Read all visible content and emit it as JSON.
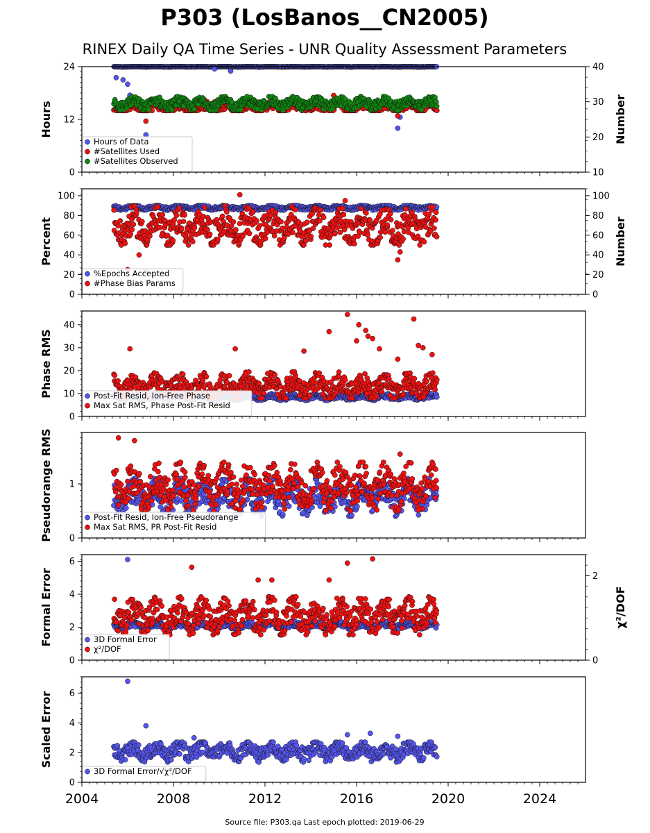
{
  "title": "P303 (LosBanos__CN2005)",
  "subtitle": "RINEX Daily QA Time Series - UNR Quality Assessment Parameters",
  "footer": "Source file: P303.qa Last epoch plotted: 2019-06-29",
  "colors": {
    "blue": "#5555ee",
    "red": "#ee1111",
    "green": "#118811",
    "navy": "#1a1a6e"
  },
  "chart_data": [
    {
      "id": "hours",
      "type": "scatter",
      "ylabel": "Hours",
      "ylabel_right": "Number",
      "xlim": [
        2004,
        2026
      ],
      "ylim": [
        0,
        24
      ],
      "yticks": [
        "0",
        "12",
        "24"
      ],
      "ylim_right": [
        10,
        40
      ],
      "yticks_right": [
        "10",
        "20",
        "30",
        "40"
      ],
      "legend_position": "lower-left",
      "legend": [
        "Hours of Data",
        "#Satellites Used",
        "#Satellites Observed"
      ],
      "x_range": [
        2005.4,
        2019.5
      ],
      "series": [
        {
          "name": "Hours of Data",
          "color": "blue",
          "axis": "left",
          "typical": 24.0,
          "band": [
            23.8,
            24.0
          ],
          "outliers": [
            [
              2005.5,
              21.5
            ],
            [
              2005.8,
              21.0
            ],
            [
              2006.0,
              20.0
            ],
            [
              2006.1,
              17.5
            ],
            [
              2006.3,
              15.0
            ],
            [
              2006.8,
              8.5
            ],
            [
              2009.8,
              23.5
            ],
            [
              2010.5,
              23.0
            ],
            [
              2017.8,
              10.0
            ],
            [
              2017.9,
              12.5
            ]
          ]
        },
        {
          "name": "#Satellites Used",
          "color": "red",
          "axis": "right",
          "typical": 28.5,
          "band": [
            27.5,
            31.5
          ],
          "outliers": [
            [
              2006.8,
              24.5
            ],
            [
              2009.8,
              30.0
            ],
            [
              2015.0,
              31.8
            ],
            [
              2017.8,
              26.0
            ],
            [
              2017.9,
              28.0
            ]
          ]
        },
        {
          "name": "#Satellites Observed",
          "color": "green",
          "axis": "right",
          "typical": 29.5,
          "band": [
            27.5,
            31.5
          ],
          "outliers": [
            [
              2017.8,
              27.5
            ]
          ]
        }
      ]
    },
    {
      "id": "percent",
      "type": "scatter",
      "ylabel": "Percent",
      "ylabel_right": "Number",
      "xlim": [
        2004,
        2026
      ],
      "ylim": [
        0,
        107
      ],
      "yticks": [
        "0",
        "20",
        "40",
        "60",
        "80",
        "100"
      ],
      "ylim_right": [
        0,
        107
      ],
      "yticks_right": [
        "0",
        "20",
        "40",
        "60",
        "80",
        "100"
      ],
      "legend_position": "lower-left",
      "legend": [
        "%Epochs Accepted",
        "#Phase Bias Params"
      ],
      "x_range": [
        2005.4,
        2019.5
      ],
      "series": [
        {
          "name": "%Epochs Accepted",
          "color": "blue",
          "axis": "left",
          "typical": 88,
          "band": [
            85,
            90
          ],
          "outliers": []
        },
        {
          "name": "#Phase Bias Params",
          "color": "red",
          "axis": "right",
          "typical": 68,
          "band": [
            50,
            90
          ],
          "outliers": [
            [
              2006.0,
              25
            ],
            [
              2006.8,
              23
            ],
            [
              2006.5,
              40
            ],
            [
              2010.9,
              101
            ],
            [
              2015.5,
              95
            ],
            [
              2017.8,
              35
            ],
            [
              2017.9,
              43
            ]
          ]
        }
      ]
    },
    {
      "id": "phase_rms",
      "type": "scatter",
      "ylabel": "Phase RMS",
      "xlim": [
        2004,
        2026
      ],
      "ylim": [
        0,
        46
      ],
      "yticks": [
        "0",
        "10",
        "20",
        "30",
        "40"
      ],
      "legend_position": "lower-left",
      "legend": [
        "Post-Fit Resid, Ion-Free Phase",
        "Max Sat RMS, Phase Post-Fit Resid"
      ],
      "x_range": [
        2005.4,
        2019.5
      ],
      "series": [
        {
          "name": "Post-Fit Resid, Ion-Free Phase",
          "color": "blue",
          "axis": "left",
          "typical": 8.5,
          "band": [
            7,
            10
          ],
          "outliers": []
        },
        {
          "name": "Max Sat RMS, Phase Post-Fit Resid",
          "color": "red",
          "axis": "left",
          "typical": 13,
          "band": [
            8,
            20
          ],
          "outliers": [
            [
              2006.1,
              29.5
            ],
            [
              2010.7,
              29.5
            ],
            [
              2013.7,
              28.5
            ],
            [
              2014.8,
              37
            ],
            [
              2015.6,
              44.5
            ],
            [
              2016.0,
              33
            ],
            [
              2016.1,
              40
            ],
            [
              2016.4,
              37.5
            ],
            [
              2016.5,
              35
            ],
            [
              2016.7,
              34
            ],
            [
              2017.0,
              29.5
            ],
            [
              2017.8,
              25
            ],
            [
              2018.5,
              42.5
            ],
            [
              2018.7,
              31
            ],
            [
              2018.9,
              30
            ],
            [
              2019.3,
              27
            ]
          ]
        }
      ]
    },
    {
      "id": "pseudorange_rms",
      "type": "scatter",
      "ylabel": "Pseudorange RMS",
      "xlim": [
        2004,
        2026
      ],
      "ylim": [
        0,
        1.95
      ],
      "yticks": [
        "0",
        "1"
      ],
      "legend_position": "lower-left",
      "legend": [
        "Post-Fit Resid, Ion-Free Pseudorange",
        "Max Sat RMS, PR Post-Fit Resid"
      ],
      "x_range": [
        2005.4,
        2019.5
      ],
      "series": [
        {
          "name": "Post-Fit Resid, Ion-Free Pseudorange",
          "color": "blue",
          "axis": "left",
          "typical": 0.75,
          "band": [
            0.4,
            1.1
          ],
          "outliers": []
        },
        {
          "name": "Max Sat RMS, PR Post-Fit Resid",
          "color": "red",
          "axis": "left",
          "typical": 0.95,
          "band": [
            0.5,
            1.4
          ],
          "outliers": [
            [
              2005.6,
              1.85
            ],
            [
              2006.3,
              1.8
            ],
            [
              2017.9,
              1.55
            ]
          ]
        }
      ]
    },
    {
      "id": "formal_error",
      "type": "scatter",
      "ylabel": "Formal Error",
      "ylabel_right": "χ²/DOF",
      "xlim": [
        2004,
        2026
      ],
      "ylim": [
        0,
        6.4
      ],
      "yticks": [
        "0",
        "2",
        "4",
        "6"
      ],
      "ylim_right": [
        0,
        2.5
      ],
      "yticks_right": [
        "0",
        "2"
      ],
      "legend_position": "lower-left",
      "legend": [
        "3D Formal Error",
        "χ²/DOF"
      ],
      "x_range": [
        2005.4,
        2019.5
      ],
      "series": [
        {
          "name": "3D Formal Error",
          "color": "blue",
          "axis": "left",
          "typical": 2.1,
          "band": [
            1.9,
            2.4
          ],
          "outliers": [
            [
              2006.0,
              6.1
            ]
          ]
        },
        {
          "name": "χ²/DOF",
          "color": "red",
          "axis": "right",
          "typical": 1.05,
          "band": [
            0.6,
            1.5
          ],
          "outliers": [
            [
              2008.8,
              2.2
            ],
            [
              2015.6,
              2.3
            ],
            [
              2016.7,
              2.4
            ],
            [
              2011.7,
              1.9
            ],
            [
              2012.3,
              1.9
            ],
            [
              2014.8,
              1.9
            ]
          ]
        }
      ]
    },
    {
      "id": "scaled_error",
      "type": "scatter",
      "ylabel": "Scaled Error",
      "xlim": [
        2004,
        2026
      ],
      "ylim": [
        0,
        7.1
      ],
      "yticks": [
        "0",
        "2",
        "4",
        "6"
      ],
      "legend_position": "lower-left",
      "legend": [
        "3D Formal Error/√χ²/DOF"
      ],
      "x_range": [
        2005.4,
        2019.5
      ],
      "series": [
        {
          "name": "3D Formal Error/√χ²/DOF",
          "color": "blue",
          "axis": "left",
          "typical": 2.1,
          "band": [
            1.3,
            2.7
          ],
          "outliers": [
            [
              2006.0,
              6.8
            ],
            [
              2006.8,
              3.8
            ],
            [
              2008.9,
              3.0
            ],
            [
              2015.6,
              3.2
            ],
            [
              2016.6,
              3.3
            ],
            [
              2017.8,
              3.1
            ]
          ]
        }
      ]
    }
  ],
  "xticks": [
    "2004",
    "2008",
    "2012",
    "2016",
    "2020",
    "2024"
  ]
}
